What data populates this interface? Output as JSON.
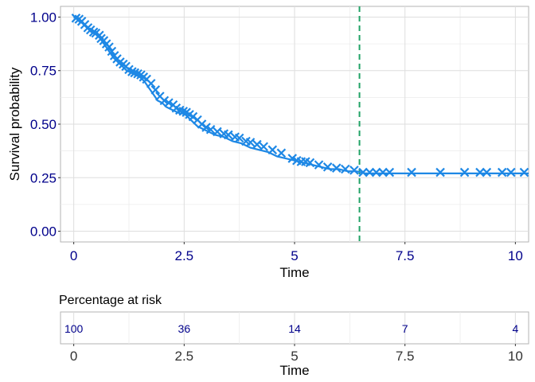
{
  "chart_data": {
    "type": "line",
    "ylabel": "Survival probability",
    "xlabel": "Time",
    "xlim": [
      -0.3,
      10.3
    ],
    "ylim": [
      -0.05,
      1.05
    ],
    "x_ticks": [
      "0",
      "2.5",
      "5",
      "7.5",
      "10"
    ],
    "x_tick_values": [
      0,
      2.5,
      5,
      7.5,
      10
    ],
    "y_ticks": [
      "0.00",
      "0.25",
      "0.50",
      "0.75",
      "1.00"
    ],
    "y_tick_values": [
      0,
      0.25,
      0.5,
      0.75,
      1.0
    ],
    "grid": true,
    "line_color": "#1e88e5",
    "reference_line_color": "#21a366",
    "reference_line_x": 6.47,
    "survival_curve": {
      "x": [
        0,
        0.1,
        0.2,
        0.3,
        0.4,
        0.5,
        0.6,
        0.7,
        0.8,
        0.9,
        1.0,
        1.1,
        1.2,
        1.3,
        1.4,
        1.5,
        1.6,
        1.7,
        1.8,
        1.9,
        2.0,
        2.1,
        2.2,
        2.3,
        2.4,
        2.5,
        2.6,
        2.7,
        2.8,
        2.9,
        3.0,
        3.2,
        3.4,
        3.6,
        3.8,
        4.0,
        4.2,
        4.4,
        4.6,
        4.8,
        5.0,
        5.2,
        5.4,
        5.6,
        5.8,
        6.0,
        6.2,
        6.4,
        6.6,
        7.0,
        8.0,
        9.0,
        10.3
      ],
      "y": [
        1.0,
        0.99,
        0.97,
        0.95,
        0.93,
        0.92,
        0.9,
        0.87,
        0.84,
        0.81,
        0.79,
        0.77,
        0.75,
        0.74,
        0.73,
        0.72,
        0.7,
        0.67,
        0.64,
        0.61,
        0.6,
        0.58,
        0.57,
        0.56,
        0.55,
        0.55,
        0.53,
        0.51,
        0.49,
        0.48,
        0.47,
        0.45,
        0.44,
        0.42,
        0.41,
        0.39,
        0.38,
        0.37,
        0.35,
        0.34,
        0.33,
        0.32,
        0.31,
        0.3,
        0.29,
        0.29,
        0.28,
        0.28,
        0.27,
        0.27,
        0.27,
        0.27,
        0.27
      ]
    },
    "censor_marks": {
      "x": [
        0.05,
        0.12,
        0.18,
        0.25,
        0.32,
        0.38,
        0.45,
        0.5,
        0.58,
        0.62,
        0.68,
        0.74,
        0.8,
        0.86,
        0.92,
        0.98,
        1.05,
        1.12,
        1.18,
        1.25,
        1.32,
        1.38,
        1.45,
        1.52,
        1.58,
        1.65,
        1.75,
        1.85,
        1.95,
        2.05,
        2.15,
        2.25,
        2.32,
        2.4,
        2.48,
        2.55,
        2.62,
        2.7,
        2.8,
        2.9,
        3.0,
        3.1,
        3.25,
        3.4,
        3.5,
        3.65,
        3.75,
        3.9,
        4.0,
        4.15,
        4.3,
        4.5,
        4.7,
        4.95,
        5.05,
        5.15,
        5.25,
        5.35,
        5.55,
        5.75,
        5.95,
        6.15,
        6.35,
        6.55,
        6.7,
        6.85,
        7.0,
        7.15,
        7.65,
        8.3,
        8.85,
        9.2,
        9.35,
        9.7,
        9.9,
        10.2
      ],
      "y": [
        0.995,
        0.99,
        0.98,
        0.965,
        0.95,
        0.94,
        0.93,
        0.925,
        0.915,
        0.9,
        0.89,
        0.875,
        0.86,
        0.84,
        0.82,
        0.805,
        0.79,
        0.78,
        0.77,
        0.755,
        0.745,
        0.74,
        0.735,
        0.73,
        0.72,
        0.71,
        0.69,
        0.66,
        0.63,
        0.61,
        0.6,
        0.59,
        0.575,
        0.565,
        0.56,
        0.555,
        0.545,
        0.535,
        0.52,
        0.5,
        0.485,
        0.475,
        0.465,
        0.455,
        0.45,
        0.44,
        0.435,
        0.42,
        0.415,
        0.405,
        0.395,
        0.38,
        0.365,
        0.34,
        0.33,
        0.325,
        0.325,
        0.32,
        0.31,
        0.3,
        0.295,
        0.29,
        0.285,
        0.275,
        0.275,
        0.275,
        0.275,
        0.275,
        0.275,
        0.275,
        0.275,
        0.275,
        0.275,
        0.275,
        0.275,
        0.275
      ]
    },
    "risk_table": {
      "title": "Percentage at risk",
      "xlabel": "Time",
      "x_ticks": [
        "0",
        "2.5",
        "5",
        "7.5",
        "10"
      ],
      "values": [
        "100",
        "36",
        "14",
        "7",
        "4"
      ]
    }
  }
}
